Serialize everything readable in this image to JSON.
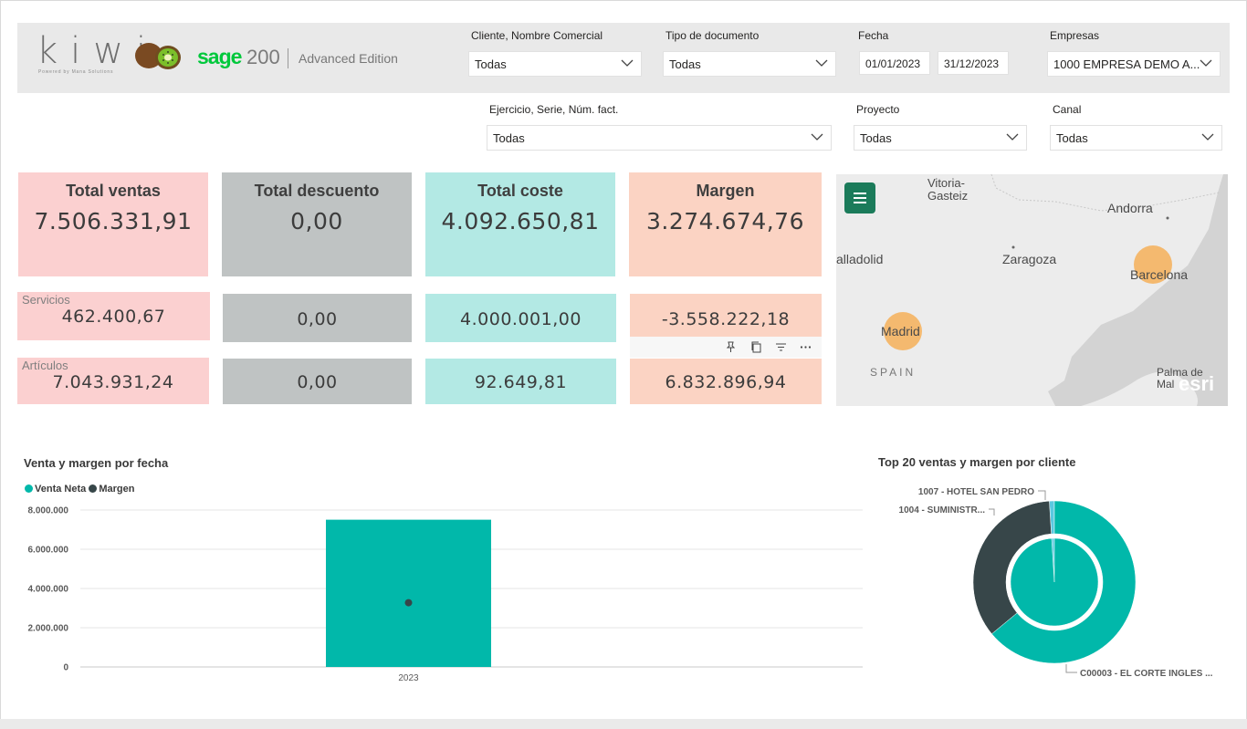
{
  "branding": {
    "logo_word": "kiwi",
    "logo_tagline": "Powered by Mana Solutions",
    "sage_word": "sage",
    "sage_version": "200",
    "edition": "Advanced Edition"
  },
  "filters": {
    "cliente": {
      "label": "Cliente, Nombre Comercial",
      "value": "Todas"
    },
    "tipo_documento": {
      "label": "Tipo de documento",
      "value": "Todas"
    },
    "fecha": {
      "label": "Fecha",
      "from": "01/01/2023",
      "to": "31/12/2023"
    },
    "empresas": {
      "label": "Empresas",
      "value": "1000 EMPRESA DEMO A..."
    },
    "ejercicio": {
      "label": "Ejercicio, Serie, Núm. fact.",
      "value": "Todas"
    },
    "proyecto": {
      "label": "Proyecto",
      "value": "Todas"
    },
    "canal": {
      "label": "Canal",
      "value": "Todas"
    }
  },
  "kpis": {
    "total_ventas": {
      "title": "Total ventas",
      "value": "7.506.331,91",
      "servicios": "462.400,67",
      "articulos": "7.043.931,24"
    },
    "total_descuento": {
      "title": "Total descuento",
      "value": "0,00",
      "servicios": "0,00",
      "articulos": "0,00"
    },
    "total_coste": {
      "title": "Total coste",
      "value": "4.092.650,81",
      "servicios": "4.000.001,00",
      "articulos": "92.649,81"
    },
    "margen": {
      "title": "Margen",
      "value": "3.274.674,76",
      "servicios": "-3.558.222,18",
      "articulos": "6.832.896,94"
    },
    "row_labels": {
      "servicios": "Servicios",
      "articulos": "Artículos"
    }
  },
  "map": {
    "labels": {
      "vitoria": "Vitoria-\nGasteiz",
      "andorra": "Andorra",
      "valladolid": "alladolid",
      "zaragoza": "Zaragoza",
      "barcelona": "Barcelona",
      "madrid": "Madrid",
      "spain": "SPAIN",
      "palma": "Palma de\nMal",
      "attribution": "esri"
    },
    "bubble_color": "#f5b462"
  },
  "chart_data": [
    {
      "type": "bar",
      "title": "Venta y margen por fecha",
      "categories": [
        "2023"
      ],
      "series": [
        {
          "name": "Venta Neta",
          "values": [
            7506331.91
          ],
          "color": "#01b8aa"
        },
        {
          "name": "Margen",
          "values": [
            3274674.76
          ],
          "color": "#374649"
        }
      ],
      "ylim": [
        0,
        8000000
      ],
      "yticks": [
        "0",
        "2.000.000",
        "4.000.000",
        "6.000.000",
        "8.000.000"
      ],
      "grid": true,
      "legend": "top-left"
    },
    {
      "type": "pie",
      "title": "Top 20 ventas y margen por cliente",
      "outer_ring": {
        "name": "Venta Neta",
        "slices": [
          {
            "label": "C00003 - EL CORTE INGLES ...",
            "value": 64.0,
            "color": "#01b8aa"
          },
          {
            "label": "1004 - SUMINISTR...",
            "value": 35.0,
            "color": "#374649"
          },
          {
            "label": "1007 - HOTEL SAN PEDRO",
            "value": 1.0,
            "color": "#5ac8e0"
          }
        ]
      },
      "inner_ring": {
        "name": "Margen",
        "slices": [
          {
            "label": "C00003 - EL CORTE INGLES ...",
            "value": 99.0,
            "color": "#01b8aa"
          },
          {
            "label": "1007 - HOTEL SAN PEDRO",
            "value": 1.0,
            "color": "#5ac8e0"
          }
        ]
      }
    }
  ]
}
